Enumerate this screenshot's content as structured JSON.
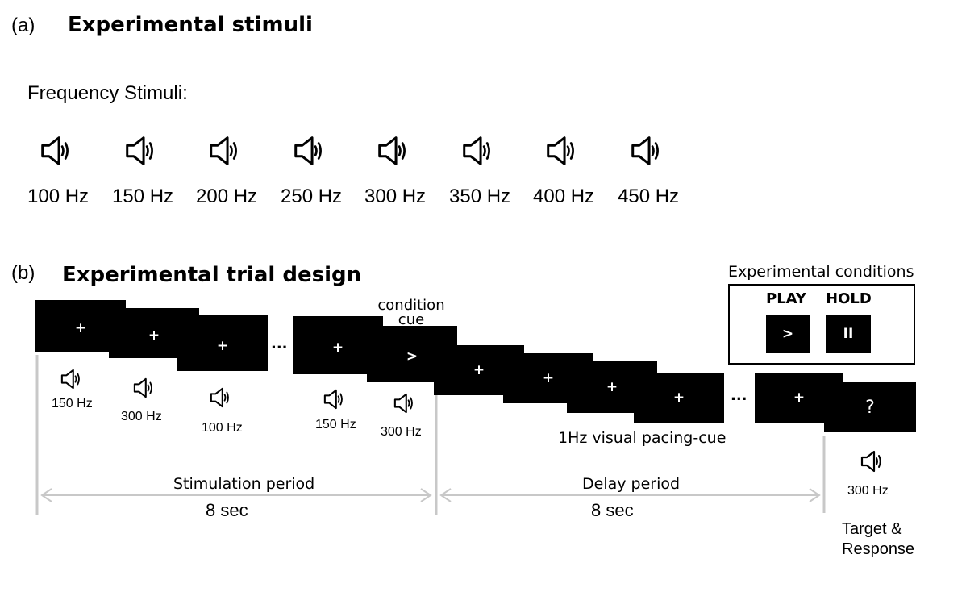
{
  "panel_a": {
    "letter": "(a)",
    "title": "Experimental stimuli",
    "subtitle": "Frequency Stimuli:",
    "stimuli": [
      "100 Hz",
      "150 Hz",
      "200 Hz",
      "250 Hz",
      "300 Hz",
      "350 Hz",
      "400 Hz",
      "450 Hz"
    ]
  },
  "panel_b": {
    "letter": "(b)",
    "title": "Experimental trial design",
    "condition_cue_label": "condition cue",
    "stim_screens": [
      {
        "symbol": "+",
        "freq": "150 Hz"
      },
      {
        "symbol": "+",
        "freq": "300 Hz"
      },
      {
        "symbol": "+",
        "freq": "100 Hz"
      },
      {
        "symbol": "+",
        "freq": "150 Hz"
      },
      {
        "symbol": ">",
        "freq": "300 Hz"
      }
    ],
    "ellipsis": "...",
    "delay_screens": [
      "+",
      "+",
      "+",
      "+",
      "+"
    ],
    "pacing_label": "1Hz visual pacing-cue",
    "target_screen": {
      "symbol": "?",
      "freq": "300 Hz"
    },
    "target_label_line1": "Target &",
    "target_label_line2": "Response",
    "stimulation_period": {
      "label": "Stimulation period",
      "duration": "8 sec"
    },
    "delay_period": {
      "label": "Delay period",
      "duration": "8 sec"
    },
    "conditions": {
      "title": "Experimental conditions",
      "play": {
        "label": "PLAY",
        "symbol": ">"
      },
      "hold": {
        "label": "HOLD",
        "symbol": "II"
      }
    }
  }
}
